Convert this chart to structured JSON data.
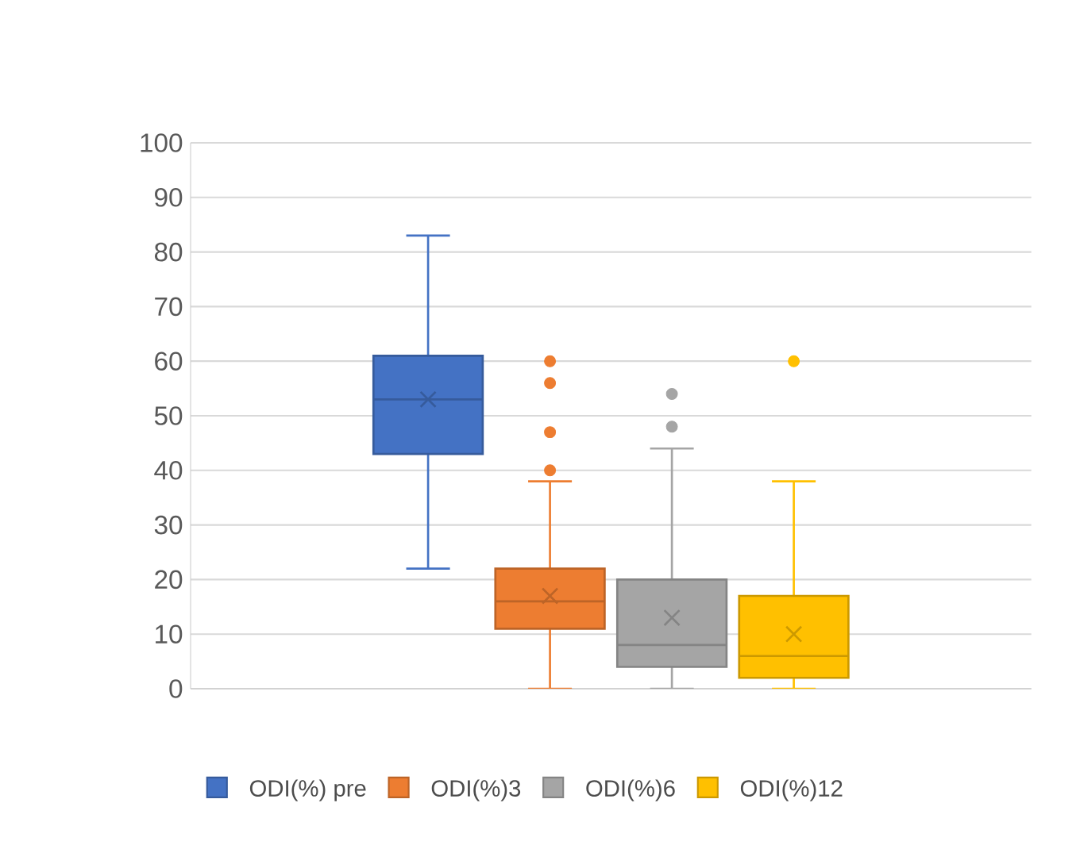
{
  "chart_data": {
    "type": "box",
    "categories": [
      null
    ],
    "ylim": [
      0,
      100
    ],
    "yticks": [
      0,
      10,
      20,
      30,
      40,
      50,
      60,
      70,
      80,
      90,
      100
    ],
    "grid": "y",
    "legend": "bottom",
    "series": [
      {
        "name": "ODI(%) pre",
        "color": "#4472c4",
        "boxes": [
          {
            "low": 22,
            "q1": 43,
            "median": 53,
            "q3": 61,
            "high": 83,
            "mean": 53
          }
        ]
      },
      {
        "name": "ODI(%)3",
        "color": "#ed7d31",
        "boxes": [
          {
            "low": 0,
            "q1": 11,
            "median": 16,
            "q3": 22,
            "high": 38,
            "mean": 17,
            "outliers": [
              40,
              47,
              56,
              60
            ]
          }
        ]
      },
      {
        "name": "ODI(%)6",
        "color": "#a5a5a5",
        "boxes": [
          {
            "low": 0,
            "q1": 4,
            "median": 8,
            "q3": 20,
            "high": 44,
            "mean": 13,
            "outliers": [
              48,
              54
            ]
          }
        ]
      },
      {
        "name": "ODI(%)12",
        "color": "#ffc000",
        "boxes": [
          {
            "low": 0,
            "q1": 2,
            "median": 6,
            "q3": 17,
            "high": 38,
            "mean": 10,
            "outliers": [
              60
            ]
          }
        ]
      }
    ]
  }
}
